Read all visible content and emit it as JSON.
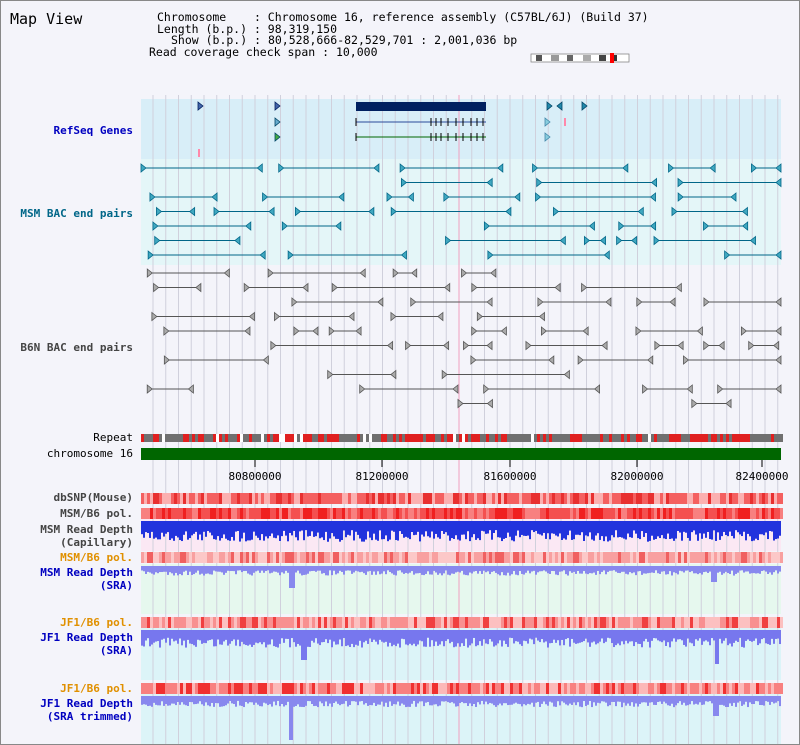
{
  "title": "Map View",
  "info": {
    "chromosome_label": "Chromosome",
    "chromosome_value": "Chromosome 16, reference assembly (C57BL/6J) (Build 37)",
    "length_label": "Length (b.p.)",
    "length_value": "98,319,150",
    "show_label": "Show (b.p.)",
    "show_value": "80,528,666-82,529,701 : 2,001,036 bp",
    "span_label": "Read coverage check span",
    "span_value": "10,000"
  },
  "tracks": {
    "refseq": "RefSeq Genes",
    "msm_bac": "MSM BAC end pairs",
    "b6n_bac": "B6N BAC end pairs",
    "repeat": "Repeat",
    "chromosome": "chromosome 16",
    "dbsnp": "dbSNP(Mouse)",
    "msm_pol": "MSM/B6 pol.",
    "msm_cap_1": "MSM Read Depth",
    "msm_cap_2": "(Capillary)",
    "msm_pol2": "MSM/B6 pol.",
    "msm_sra_1": "MSM Read Depth",
    "msm_sra_2": "(SRA)",
    "jf1_pol": "JF1/B6 pol.",
    "jf1_sra_1": "JF1 Read Depth",
    "jf1_sra_2": "(SRA)",
    "jf1_pol2": "JF1/B6 pol.",
    "jf1_trim_1": "JF1 Read Depth",
    "jf1_trim_2": "(SRA trimmed)"
  },
  "axis": {
    "ticks": [
      "80800000",
      "81200000",
      "81600000",
      "82000000",
      "82400000"
    ]
  },
  "colors": {
    "blue_label": "#0000c0",
    "teal_label": "#006688",
    "gray_label": "#444444",
    "orange_label": "#e09000",
    "chrom": "#006600",
    "gene": "#002060"
  }
}
